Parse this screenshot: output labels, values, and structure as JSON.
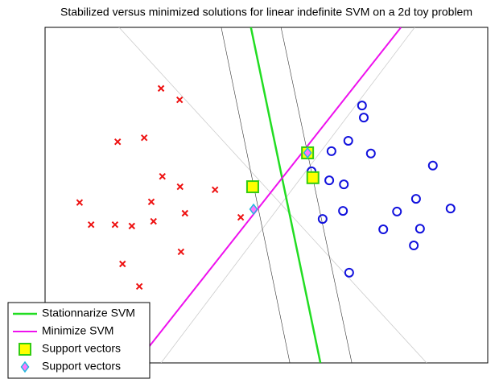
{
  "chart_data": {
    "type": "scatter",
    "title": "Stabilized versus minimized solutions for linear indefinite SVM on a 2d toy problem",
    "xlim": [
      0,
      100
    ],
    "ylim": [
      0,
      100
    ],
    "legend": "southwest",
    "series": [
      {
        "marker": "line",
        "color": "#cccccc",
        "linewidth": 0.8,
        "x": [
          16.7,
          86.2
        ],
        "y": [
          100,
          0
        ]
      },
      {
        "marker": "line",
        "color": "#cccccc",
        "linewidth": 0.8,
        "x": [
          83.5,
          26.2
        ],
        "y": [
          100,
          0
        ]
      },
      {
        "marker": "line",
        "color": "#333333",
        "linewidth": 0.6,
        "x": [
          39.8,
          55.3
        ],
        "y": [
          100,
          0
        ]
      },
      {
        "marker": "line",
        "color": "#333333",
        "linewidth": 0.6,
        "x": [
          53.3,
          69.3
        ],
        "y": [
          100,
          0
        ]
      },
      {
        "name": "Stationnarize SVM",
        "marker": "line",
        "color": "#22dd22",
        "linewidth": 2.5,
        "x": [
          46.5,
          62.2
        ],
        "y": [
          100,
          0
        ]
      },
      {
        "name": "Minimize SVM",
        "marker": "line",
        "color": "#ee11ee",
        "linewidth": 2,
        "x": [
          80.4,
          20.6
        ],
        "y": [
          100,
          0
        ]
      },
      {
        "marker": "x",
        "color": "#ee1111",
        "x": [
          26.2,
          30.4,
          16.4,
          22.4,
          26.5,
          30.5,
          38.4,
          7.8,
          24.0,
          31.6,
          10.4,
          15.8,
          19.6,
          24.5,
          44.2,
          30.7,
          17.5,
          21.3
        ],
        "y": [
          81.8,
          78.4,
          65.9,
          67.1,
          55.6,
          52.5,
          51.6,
          47.8,
          48.0,
          44.6,
          41.2,
          41.2,
          40.8,
          42.2,
          43.4,
          33.1,
          29.5,
          22.8
        ]
      },
      {
        "marker": "o",
        "color": "#1111dd",
        "x": [
          71.6,
          72.0,
          68.5,
          64.7,
          73.6,
          87.6,
          60.2,
          64.2,
          67.5,
          83.8,
          91.6,
          67.3,
          79.5,
          62.7,
          76.4,
          84.7,
          83.3,
          68.7
        ],
        "y": [
          76.7,
          73.1,
          66.2,
          63.1,
          62.4,
          58.8,
          57.1,
          54.4,
          53.2,
          48.9,
          46.0,
          45.3,
          45.1,
          42.9,
          39.8,
          40.0,
          35.0,
          26.9
        ]
      },
      {
        "name": "Support vectors",
        "marker": "square",
        "color": "#ffff00",
        "edgecolor": "#33cc11",
        "x": [
          46.9,
          59.3,
          60.5
        ],
        "y": [
          52.5,
          62.6,
          55.2
        ]
      },
      {
        "name": "Support vectors",
        "marker": "diamond",
        "color": "#ff77ff",
        "edgecolor": "#22bbdd",
        "x": [
          47.1,
          59.3
        ],
        "y": [
          45.8,
          62.6
        ]
      }
    ]
  }
}
